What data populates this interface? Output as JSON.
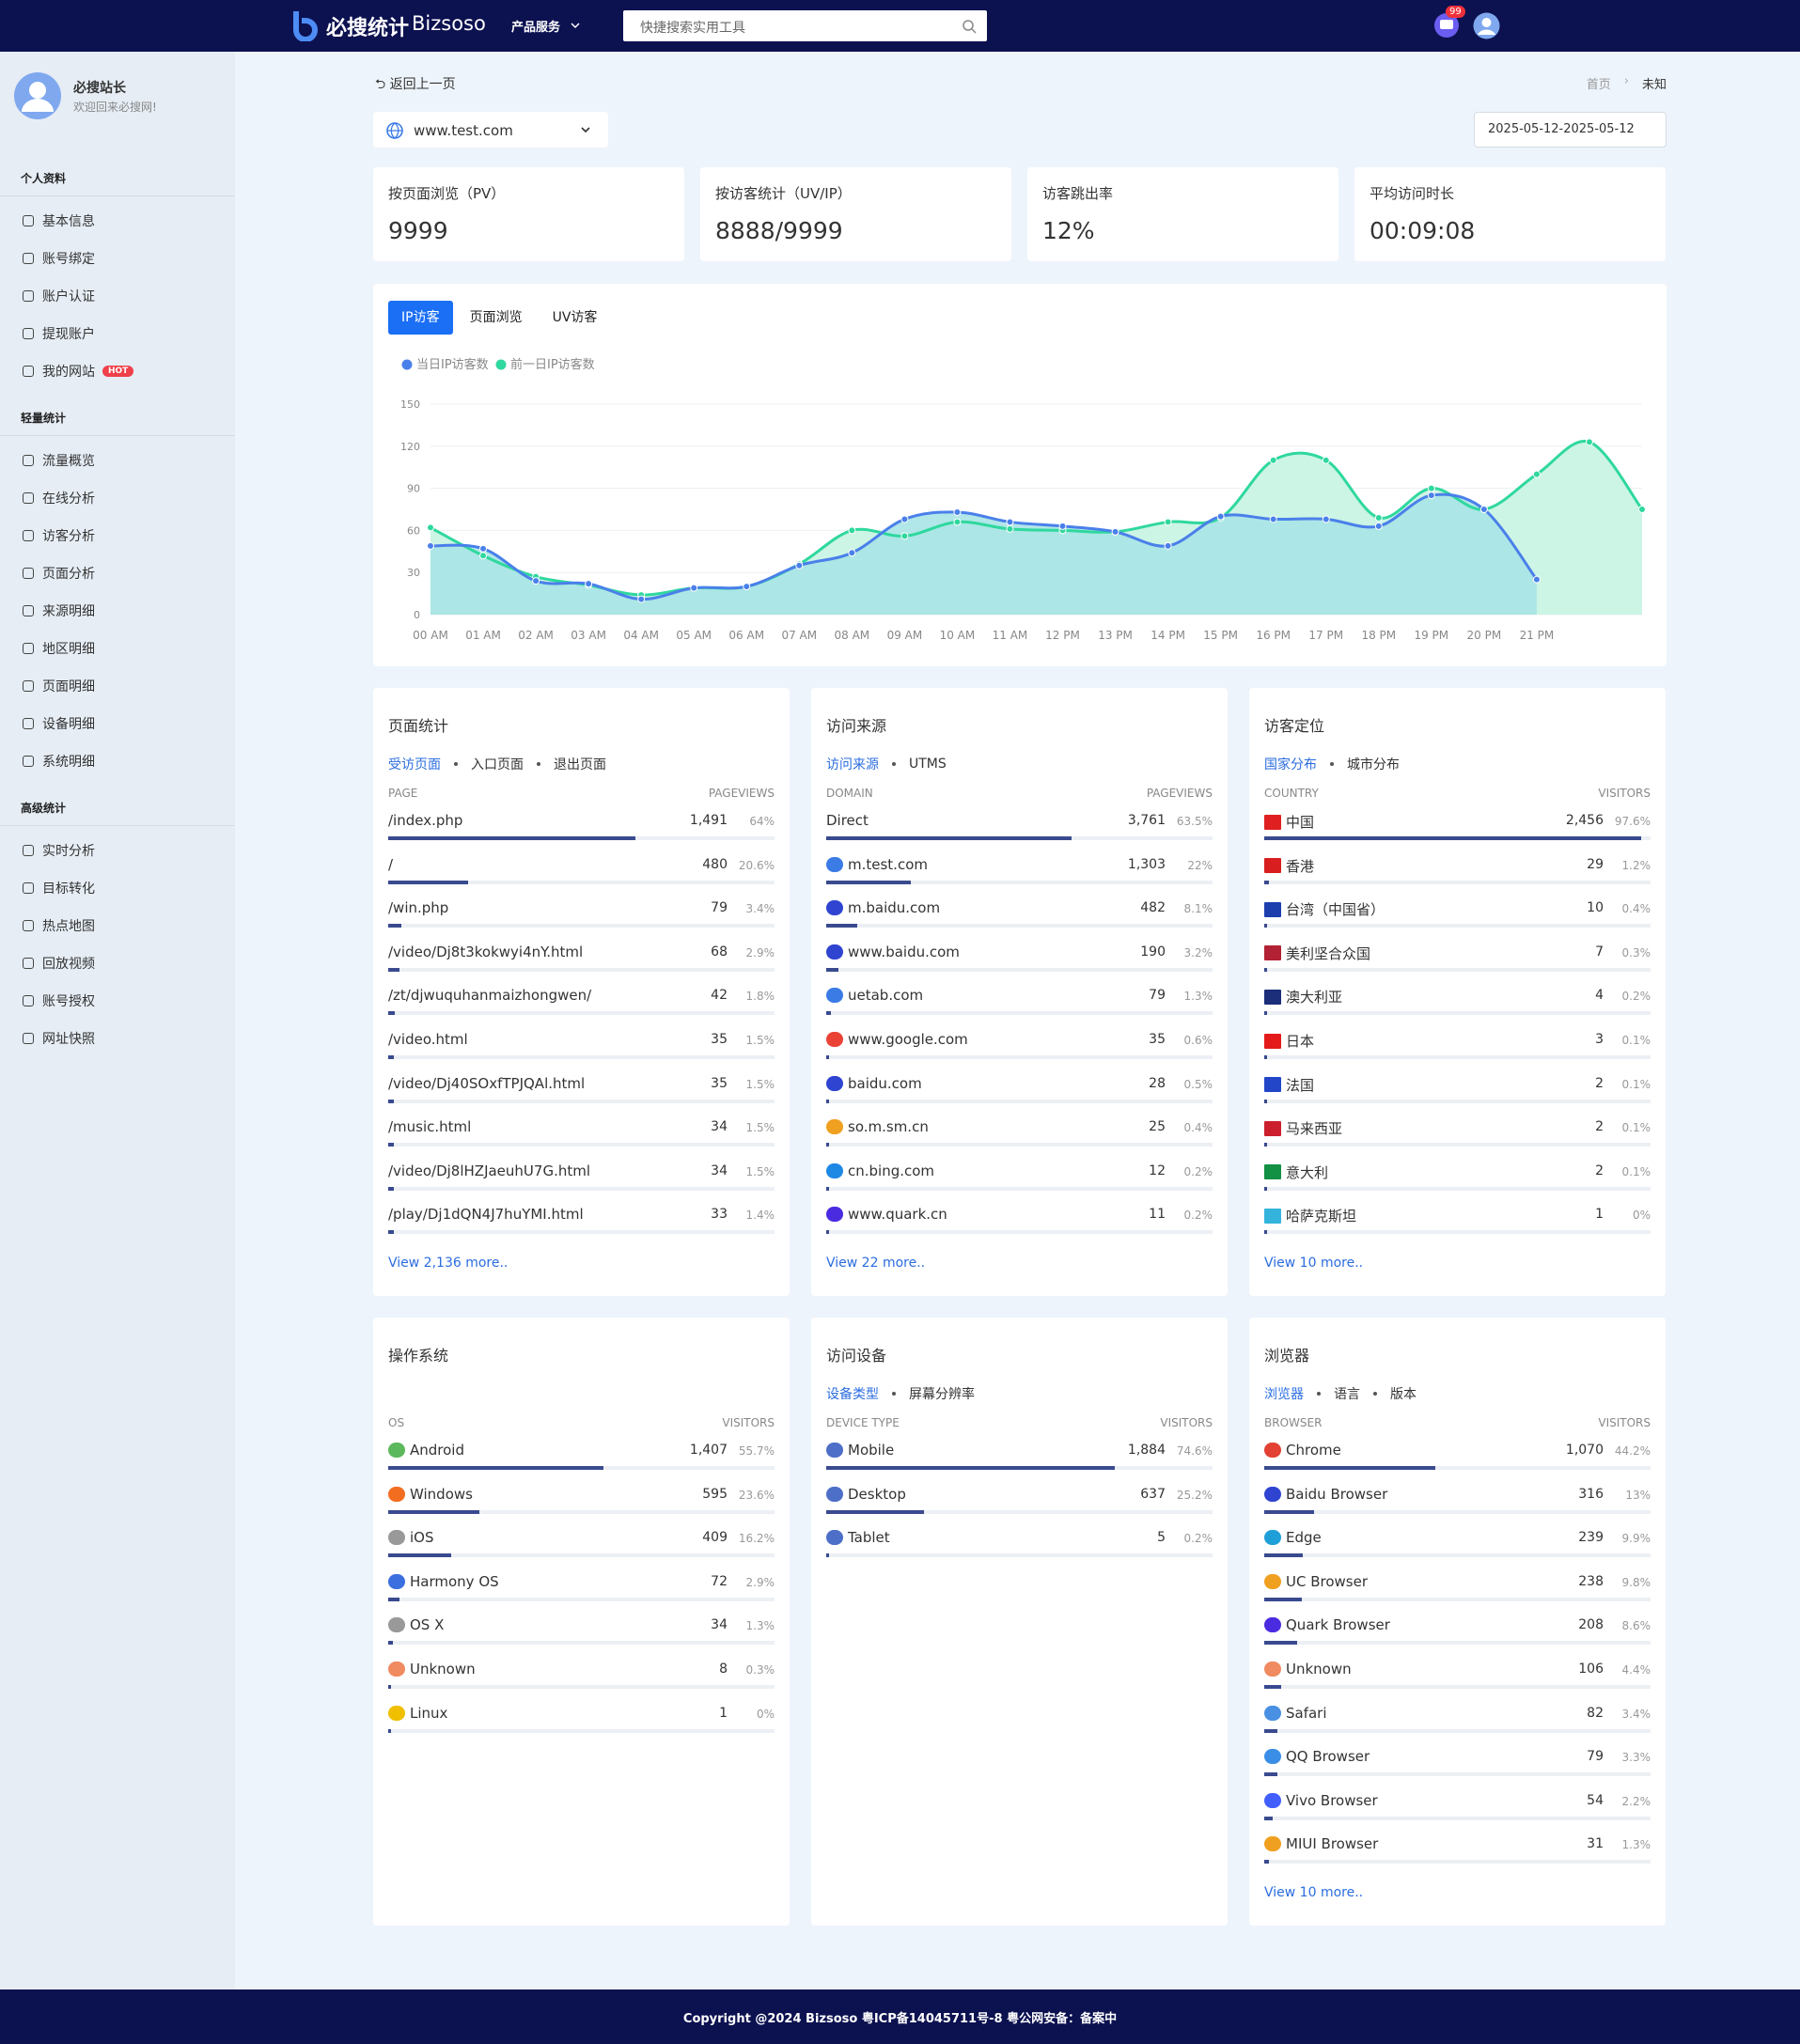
{
  "header": {
    "logo": "必搜统计",
    "brand": "Bizsoso",
    "menu": "产品服务",
    "search": "快捷搜索实用工具",
    "badge": "99"
  },
  "sidebar": {
    "user": {
      "name": "必搜站长",
      "welcome": "欢迎回来必搜网!"
    },
    "hot": "HOT",
    "groups": [
      {
        "title": "个人资料",
        "items": [
          "基本信息",
          "账号绑定",
          "账户认证",
          "提现账户",
          "我的网站"
        ]
      },
      {
        "title": "轻量统计",
        "items": [
          "流量概览",
          "在线分析",
          "访客分析",
          "页面分析",
          "来源明细",
          "地区明细",
          "页面明细",
          "设备明细",
          "系统明细"
        ]
      },
      {
        "title": "高级统计",
        "items": [
          "实时分析",
          "目标转化",
          "热点地图",
          "回放视频",
          "账号授权",
          "网址快照"
        ]
      }
    ]
  },
  "top": {
    "back": "返回上一页",
    "breadcrumb": [
      "首页",
      "未知"
    ],
    "site": "www.test.com",
    "date": "2025-05-12-2025-05-12"
  },
  "stats": [
    {
      "label": "按页面浏览（PV）",
      "value": "9999"
    },
    {
      "label": "按访客统计（UV/IP）",
      "value": "8888/9999"
    },
    {
      "label": "访客跳出率",
      "value": "12%"
    },
    {
      "label": "平均访问时长",
      "value": "00:09:08"
    }
  ],
  "chart_tabs": [
    "IP访客",
    "页面浏览",
    "UV访客"
  ],
  "chart_data": {
    "type": "line",
    "categories": [
      "00 AM",
      "01 AM",
      "02 AM",
      "03 AM",
      "04 AM",
      "05 AM",
      "06 AM",
      "07 AM",
      "08 AM",
      "09 AM",
      "10 AM",
      "11 AM",
      "12 PM",
      "13 PM",
      "14 PM",
      "15 PM",
      "16 PM",
      "17 PM",
      "18 PM",
      "19 PM",
      "20 PM",
      "21 PM",
      null,
      null
    ],
    "series": [
      {
        "name": "当日IP访客数",
        "color": "#4a80ea",
        "fill": "#a9e4e6",
        "values": [
          49,
          47,
          24,
          22,
          11,
          19,
          20,
          35,
          44,
          68,
          73,
          66,
          63,
          59,
          49,
          70,
          68,
          68,
          63,
          85,
          75,
          25,
          null,
          null
        ]
      },
      {
        "name": "前一日IP访客数",
        "color": "#2fd89e",
        "fill": "#c6f4e2",
        "values": [
          62,
          42,
          27,
          21,
          14,
          19,
          20,
          36,
          60,
          56,
          66,
          61,
          60,
          59,
          66,
          69,
          110,
          110,
          69,
          90,
          75,
          100,
          123,
          75
        ]
      }
    ],
    "ylim": [
      0,
      150
    ],
    "yticks": [
      0,
      30,
      60,
      90,
      120,
      150
    ],
    "grid": true
  },
  "panels": [
    {
      "title": "页面统计",
      "tabs": [
        "受访页面",
        "入口页面",
        "退出页面"
      ],
      "columns": [
        "PAGE",
        "PAGEVIEWS"
      ],
      "more": "View 2,136 more..",
      "rows": [
        {
          "name": "/index.php",
          "value": "1,491",
          "share": 64,
          "share_label": "64%"
        },
        {
          "name": "/",
          "value": "480",
          "share": 20.6,
          "share_label": "20.6%"
        },
        {
          "name": "/win.php",
          "value": "79",
          "share": 3.4,
          "share_label": "3.4%"
        },
        {
          "name": "/video/Dj8t3kokwyi4nY.html",
          "value": "68",
          "share": 2.9,
          "share_label": "2.9%"
        },
        {
          "name": "/zt/djwuquhanmaizhongwen/",
          "value": "42",
          "share": 1.8,
          "share_label": "1.8%"
        },
        {
          "name": "/video.html",
          "value": "35",
          "share": 1.5,
          "share_label": "1.5%"
        },
        {
          "name": "/video/Dj40SOxfTPJQAl.html",
          "value": "35",
          "share": 1.5,
          "share_label": "1.5%"
        },
        {
          "name": "/music.html",
          "value": "34",
          "share": 1.5,
          "share_label": "1.5%"
        },
        {
          "name": "/video/Dj8lHZJaeuhU7G.html",
          "value": "34",
          "share": 1.5,
          "share_label": "1.5%"
        },
        {
          "name": "/play/Dj1dQN4J7huYMI.html",
          "value": "33",
          "share": 1.4,
          "share_label": "1.4%"
        }
      ]
    },
    {
      "title": "访问来源",
      "tabs": [
        "访问来源",
        "UTMS"
      ],
      "columns": [
        "DOMAIN",
        "PAGEVIEWS"
      ],
      "more": "View 22 more..",
      "rows": [
        {
          "name": "Direct",
          "value": "3,761",
          "share": 63.5,
          "share_label": "63.5%"
        },
        {
          "name": "m.test.com",
          "value": "1,303",
          "share": 22,
          "share_label": "22%"
        },
        {
          "name": "m.baidu.com",
          "value": "482",
          "share": 8.1,
          "share_label": "8.1%"
        },
        {
          "name": "www.baidu.com",
          "value": "190",
          "share": 3.2,
          "share_label": "3.2%"
        },
        {
          "name": "uetab.com",
          "value": "79",
          "share": 1.3,
          "share_label": "1.3%"
        },
        {
          "name": "www.google.com",
          "value": "35",
          "share": 0.6,
          "share_label": "0.6%"
        },
        {
          "name": "baidu.com",
          "value": "28",
          "share": 0.5,
          "share_label": "0.5%"
        },
        {
          "name": "so.m.sm.cn",
          "value": "25",
          "share": 0.4,
          "share_label": "0.4%"
        },
        {
          "name": "cn.bing.com",
          "value": "12",
          "share": 0.2,
          "share_label": "0.2%"
        },
        {
          "name": "www.quark.cn",
          "value": "11",
          "share": 0.2,
          "share_label": "0.2%"
        }
      ]
    },
    {
      "title": "访客定位",
      "tabs": [
        "国家分布",
        "城市分布"
      ],
      "columns": [
        "COUNTRY",
        "VISITORS"
      ],
      "more": "View 10 more..",
      "rows": [
        {
          "name": "中国",
          "value": "2,456",
          "share": 97.6,
          "share_label": "97.6%"
        },
        {
          "name": "香港",
          "value": "29",
          "share": 1.2,
          "share_label": "1.2%"
        },
        {
          "name": "台湾（中国省）",
          "value": "10",
          "share": 0.4,
          "share_label": "0.4%"
        },
        {
          "name": "美利坚合众国",
          "value": "7",
          "share": 0.3,
          "share_label": "0.3%"
        },
        {
          "name": "澳大利亚",
          "value": "4",
          "share": 0.2,
          "share_label": "0.2%"
        },
        {
          "name": "日本",
          "value": "3",
          "share": 0.1,
          "share_label": "0.1%"
        },
        {
          "name": "法国",
          "value": "2",
          "share": 0.1,
          "share_label": "0.1%"
        },
        {
          "name": "马来西亚",
          "value": "2",
          "share": 0.1,
          "share_label": "0.1%"
        },
        {
          "name": "意大利",
          "value": "2",
          "share": 0.1,
          "share_label": "0.1%"
        },
        {
          "name": "哈萨克斯坦",
          "value": "1",
          "share": 0,
          "share_label": "0%"
        }
      ]
    },
    {
      "title": "操作系统",
      "tabs": [],
      "columns": [
        "OS",
        "VISITORS"
      ],
      "rows": [
        {
          "name": "Android",
          "value": "1,407",
          "share": 55.7,
          "share_label": "55.7%"
        },
        {
          "name": "Windows",
          "value": "595",
          "share": 23.6,
          "share_label": "23.6%"
        },
        {
          "name": "iOS",
          "value": "409",
          "share": 16.2,
          "share_label": "16.2%"
        },
        {
          "name": "Harmony OS",
          "value": "72",
          "share": 2.9,
          "share_label": "2.9%"
        },
        {
          "name": "OS X",
          "value": "34",
          "share": 1.3,
          "share_label": "1.3%"
        },
        {
          "name": "Unknown",
          "value": "8",
          "share": 0.3,
          "share_label": "0.3%"
        },
        {
          "name": "Linux",
          "value": "1",
          "share": 0,
          "share_label": "0%"
        }
      ]
    },
    {
      "title": "访问设备",
      "tabs": [
        "设备类型",
        "屏幕分辨率"
      ],
      "columns": [
        "DEVICE TYPE",
        "VISITORS"
      ],
      "rows": [
        {
          "name": "Mobile",
          "value": "1,884",
          "share": 74.6,
          "share_label": "74.6%"
        },
        {
          "name": "Desktop",
          "value": "637",
          "share": 25.2,
          "share_label": "25.2%"
        },
        {
          "name": "Tablet",
          "value": "5",
          "share": 0.2,
          "share_label": "0.2%"
        }
      ]
    },
    {
      "title": "浏览器",
      "tabs": [
        "浏览器",
        "语言",
        "版本"
      ],
      "columns": [
        "BROWSER",
        "VISITORS"
      ],
      "more": "View 10 more..",
      "rows": [
        {
          "name": "Chrome",
          "value": "1,070",
          "share": 44.2,
          "share_label": "44.2%"
        },
        {
          "name": "Baidu Browser",
          "value": "316",
          "share": 13,
          "share_label": "13%"
        },
        {
          "name": "Edge",
          "value": "239",
          "share": 9.9,
          "share_label": "9.9%"
        },
        {
          "name": "UC Browser",
          "value": "238",
          "share": 9.8,
          "share_label": "9.8%"
        },
        {
          "name": "Quark Browser",
          "value": "208",
          "share": 8.6,
          "share_label": "8.6%"
        },
        {
          "name": "Unknown",
          "value": "106",
          "share": 4.4,
          "share_label": "4.4%"
        },
        {
          "name": "Safari",
          "value": "82",
          "share": 3.4,
          "share_label": "3.4%"
        },
        {
          "name": "QQ Browser",
          "value": "79",
          "share": 3.3,
          "share_label": "3.3%"
        },
        {
          "name": "Vivo Browser",
          "value": "54",
          "share": 2.2,
          "share_label": "2.2%"
        },
        {
          "name": "MIUI Browser",
          "value": "31",
          "share": 1.3,
          "share_label": "1.3%"
        }
      ]
    }
  ],
  "footer": "Copyright @2024 Bizsoso 粤ICP备14045711号-8 粤公网安备：备案中"
}
